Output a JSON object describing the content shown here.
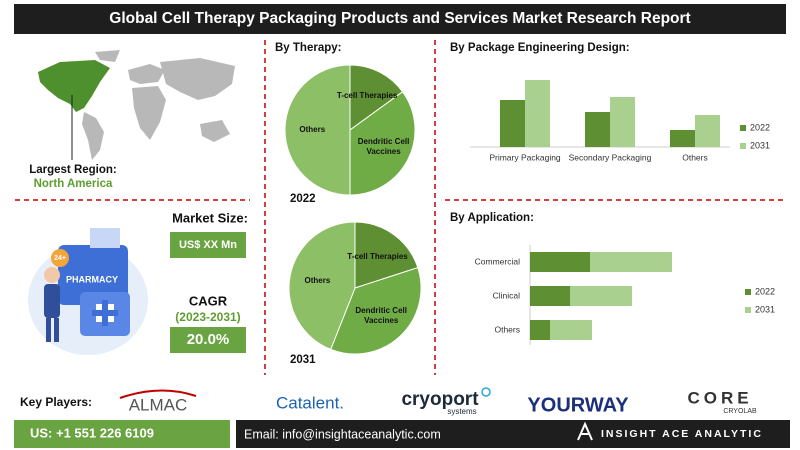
{
  "header": {
    "title": "Global Cell Therapy Packaging Products and Services Market Research Report"
  },
  "region": {
    "label": "Largest Region:",
    "value": "North America"
  },
  "illustration": {
    "sign": "PHARMACY",
    "badge": "24+"
  },
  "market": {
    "size_label": "Market Size:",
    "size_value": "US$ XX Mn",
    "cagr_label": "CAGR",
    "cagr_period": "(2023-2031)",
    "cagr_value": "20.0%"
  },
  "therapy_title": "By Therapy:",
  "chart_data": [
    {
      "type": "pie",
      "subtitle": "2022",
      "categories": [
        "T-cell Therapies",
        "Dendritic Cell Vaccines",
        "Others"
      ],
      "values": [
        15,
        35,
        50
      ],
      "colors": [
        "#5e8f32",
        "#6fac46",
        "#8dbf66"
      ]
    },
    {
      "type": "pie",
      "subtitle": "2031",
      "categories": [
        "T-cell Therapies",
        "Dendritic Cell Vaccines",
        "Others"
      ],
      "values": [
        20,
        36,
        44
      ],
      "colors": [
        "#5e8f32",
        "#6fac46",
        "#8dbf66"
      ]
    },
    {
      "type": "bar",
      "title": "By Package Engineering Design:",
      "categories": [
        "Primary Packaging",
        "Secondary Packaging",
        "Others"
      ],
      "series": [
        {
          "name": "2022",
          "color": "#5e8f32",
          "values": [
            47,
            35,
            17
          ]
        },
        {
          "name": "2031",
          "color": "#a9d08e",
          "values": [
            67,
            50,
            32
          ]
        }
      ]
    },
    {
      "type": "hbar",
      "stacked": true,
      "title": "By Application:",
      "categories": [
        "Commercial",
        "Clinical",
        "Others"
      ],
      "series": [
        {
          "name": "2022",
          "color": "#5e8f32",
          "values": [
            60,
            40,
            20
          ]
        },
        {
          "name": "2031",
          "color": "#a9d08e",
          "values": [
            82,
            62,
            42
          ]
        }
      ]
    }
  ],
  "players": {
    "label": "Key Players:",
    "almac": "ALMAC",
    "catalent": "Catalent.",
    "cryoport": "cryoport",
    "cryoport_sub": "systems",
    "yourway": "YOURWAY",
    "core": "CORE",
    "core_sub": "CRYOLAB"
  },
  "footer": {
    "phone": "US: +1 551 226 6109",
    "email": "Email: info@insightaceanalytic.com",
    "brand": "INSIGHT ACE ANALYTIC"
  }
}
